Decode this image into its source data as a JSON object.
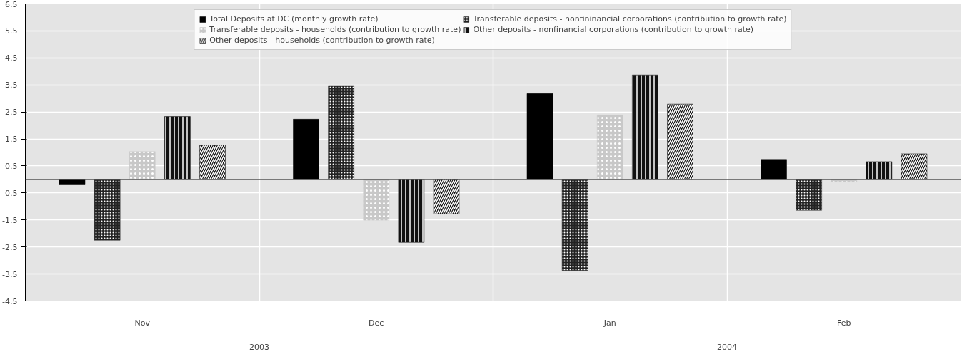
{
  "chart_data": {
    "type": "bar",
    "categories": [
      "Nov",
      "Dec",
      "Jan",
      "Feb"
    ],
    "series": [
      {
        "name": "Total Deposits at DC (monthly growth rate)",
        "color": "#000000",
        "values": [
          -0.2,
          2.23,
          3.18,
          0.74
        ]
      },
      {
        "name": "Transferable deposits - nonfininancial corporations (contribution to growth rate)",
        "color": "#222222",
        "values": [
          -2.25,
          3.45,
          -3.37,
          -1.14
        ]
      },
      {
        "name": "Transferable deposits - households (contribution to growth rate)",
        "color": "#c8c8c8",
        "values": [
          1.03,
          -1.51,
          2.39,
          -0.08
        ]
      },
      {
        "name": "Other deposits - nonfinancial corporations (contribution to growth rate)",
        "color": "#111111",
        "values": [
          2.33,
          -2.33,
          3.87,
          0.66
        ]
      },
      {
        "name": "Other deposits - households (contribution to growth rate)",
        "color": "#1a1a1a",
        "values": [
          1.27,
          -1.27,
          2.79,
          0.95
        ]
      }
    ],
    "ylim": [
      -4.5,
      6.5
    ],
    "yticks": [
      -4.5,
      -3.5,
      -2.5,
      -1.5,
      -0.5,
      0.5,
      1.5,
      2.5,
      3.5,
      4.5,
      5.5,
      6.5
    ],
    "annotations": [
      "2003",
      "2004"
    ],
    "grid": true,
    "legend": "top"
  }
}
